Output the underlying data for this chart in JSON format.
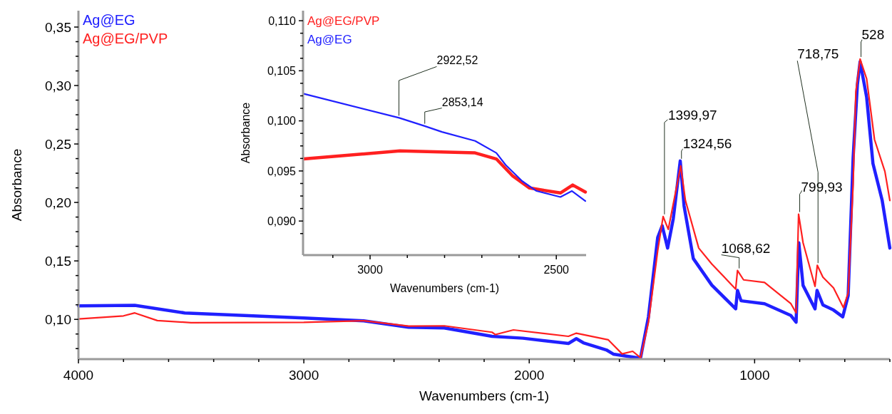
{
  "chart_data": [
    {
      "type": "line",
      "xlabel": "Wavenumbers (cm-1)",
      "ylabel": "Absorbance",
      "xlim": [
        4000,
        400
      ],
      "ylim": [
        0.066,
        0.364
      ],
      "xticks": [
        {
          "value": 4000,
          "label": "4000"
        },
        {
          "value": 3800,
          "label": null
        },
        {
          "value": 3600,
          "label": null
        },
        {
          "value": 3400,
          "label": null
        },
        {
          "value": 3200,
          "label": null
        },
        {
          "value": 3000,
          "label": "3000"
        },
        {
          "value": 2800,
          "label": null
        },
        {
          "value": 2600,
          "label": null
        },
        {
          "value": 2400,
          "label": null
        },
        {
          "value": 2200,
          "label": null
        },
        {
          "value": 2000,
          "label": "2000"
        },
        {
          "value": 1800,
          "label": null
        },
        {
          "value": 1600,
          "label": null
        },
        {
          "value": 1400,
          "label": null
        },
        {
          "value": 1200,
          "label": null
        },
        {
          "value": 1000,
          "label": "1000"
        },
        {
          "value": 800,
          "label": null
        },
        {
          "value": 600,
          "label": null
        },
        {
          "value": 400,
          "label": null
        }
      ],
      "yticks": [
        {
          "value": 0.075,
          "label": null
        },
        {
          "value": 0.0875,
          "label": null
        },
        {
          "value": 0.1,
          "label": "0,10"
        },
        {
          "value": 0.1125,
          "label": null
        },
        {
          "value": 0.125,
          "label": null
        },
        {
          "value": 0.1375,
          "label": null
        },
        {
          "value": 0.15,
          "label": "0,15"
        },
        {
          "value": 0.1625,
          "label": null
        },
        {
          "value": 0.175,
          "label": null
        },
        {
          "value": 0.1875,
          "label": null
        },
        {
          "value": 0.2,
          "label": "0,20"
        },
        {
          "value": 0.2125,
          "label": null
        },
        {
          "value": 0.225,
          "label": null
        },
        {
          "value": 0.2375,
          "label": null
        },
        {
          "value": 0.25,
          "label": "0,25"
        },
        {
          "value": 0.2625,
          "label": null
        },
        {
          "value": 0.275,
          "label": null
        },
        {
          "value": 0.2875,
          "label": null
        },
        {
          "value": 0.3,
          "label": "0,30"
        },
        {
          "value": 0.3125,
          "label": null
        },
        {
          "value": 0.325,
          "label": null
        },
        {
          "value": 0.3375,
          "label": null
        },
        {
          "value": 0.35,
          "label": "0,35"
        }
      ],
      "grid": false,
      "legend": "top left",
      "line_style": "solid",
      "series": [
        {
          "name": "Ag@EG",
          "color": "#2020ff",
          "x": [
            4000,
            3750,
            3528,
            3000,
            2734,
            2535,
            2377,
            2165,
            2028,
            1826,
            1791,
            1760,
            1658,
            1627,
            1522,
            1506,
            1471,
            1430,
            1410,
            1386,
            1361,
            1330,
            1313,
            1272,
            1190,
            1084,
            1076,
            1060,
            956,
            839,
            816,
            804,
            785,
            732,
            723,
            697,
            650,
            609,
            585,
            563,
            544,
            532,
            503,
            475,
            434,
            400
          ],
          "values": [
            0.1116,
            0.112,
            0.1055,
            0.1012,
            0.0988,
            0.0933,
            0.0927,
            0.0855,
            0.0839,
            0.0794,
            0.0835,
            0.08,
            0.0739,
            0.0703,
            0.0672,
            0.0671,
            0.1022,
            0.17,
            0.18,
            0.161,
            0.186,
            0.2355,
            0.197,
            0.152,
            0.1293,
            0.109,
            0.1248,
            0.1159,
            0.1134,
            0.1033,
            0.0976,
            0.1655,
            0.129,
            0.109,
            0.1248,
            0.1123,
            0.108,
            0.1022,
            0.1203,
            0.238,
            0.301,
            0.3204,
            0.29,
            0.2333,
            0.2017,
            0.161
          ]
        },
        {
          "name": "Ag@EG/PVP",
          "color": "#ff2020",
          "x": [
            4000,
            3800,
            3750,
            3650,
            3500,
            3000,
            2734,
            2535,
            2377,
            2165,
            2150,
            2070,
            1826,
            1791,
            1649,
            1588,
            1541,
            1506,
            1471,
            1430,
            1406,
            1383,
            1328,
            1307,
            1248,
            1190,
            1084,
            1076,
            1049,
            956,
            839,
            816,
            805,
            785,
            732,
            722,
            697,
            650,
            606,
            585,
            563,
            551,
            532,
            503,
            468,
            422,
            400
          ],
          "values": [
            0.1004,
            0.103,
            0.1055,
            0.099,
            0.0972,
            0.0975,
            0.0988,
            0.0943,
            0.0945,
            0.089,
            0.087,
            0.091,
            0.0855,
            0.0882,
            0.0825,
            0.0705,
            0.0727,
            0.0671,
            0.0976,
            0.1587,
            0.188,
            0.177,
            0.2312,
            0.2017,
            0.161,
            0.1474,
            0.1259,
            0.1418,
            0.1338,
            0.1316,
            0.1134,
            0.1056,
            0.19,
            0.1655,
            0.1282,
            0.1463,
            0.1361,
            0.127,
            0.1101,
            0.1226,
            0.2154,
            0.2944,
            0.3226,
            0.3057,
            0.2537,
            0.2265,
            0.2017
          ]
        }
      ],
      "annotations": [
        {
          "text": "1399,97",
          "x": 1400,
          "y": 0.188
        },
        {
          "text": "1324,56",
          "x": 1324.56,
          "y": 0.2355
        },
        {
          "text": "1068,62",
          "x": 1068.62,
          "y": 0.1418
        },
        {
          "text": "799,93",
          "x": 800,
          "y": 0.19
        },
        {
          "text": "718,75",
          "x": 718.75,
          "y": 0.1463
        },
        {
          "text": "528",
          "x": 528,
          "y": 0.3226
        }
      ]
    },
    {
      "type": "line",
      "xlabel": "Wavenumbers (cm-1)",
      "ylabel": "Absorbance",
      "xlim": [
        3180,
        2420
      ],
      "ylim": [
        0.0866,
        0.111
      ],
      "xticks": [
        {
          "value": 3100,
          "label": null
        },
        {
          "value": 3000,
          "label": "3000"
        },
        {
          "value": 2900,
          "label": null
        },
        {
          "value": 2800,
          "label": null
        },
        {
          "value": 2700,
          "label": null
        },
        {
          "value": 2600,
          "label": null
        },
        {
          "value": 2500,
          "label": "2500"
        }
      ],
      "yticks": [
        {
          "value": 0.08875,
          "label": null
        },
        {
          "value": 0.09,
          "label": "0,090"
        },
        {
          "value": 0.09125,
          "label": null
        },
        {
          "value": 0.0925,
          "label": null
        },
        {
          "value": 0.09375,
          "label": null
        },
        {
          "value": 0.095,
          "label": "0,095"
        },
        {
          "value": 0.09625,
          "label": null
        },
        {
          "value": 0.0975,
          "label": null
        },
        {
          "value": 0.09875,
          "label": null
        },
        {
          "value": 0.1,
          "label": "0,100"
        },
        {
          "value": 0.10125,
          "label": null
        },
        {
          "value": 0.1025,
          "label": null
        },
        {
          "value": 0.10375,
          "label": null
        },
        {
          "value": 0.105,
          "label": "0,105"
        },
        {
          "value": 0.10625,
          "label": null
        },
        {
          "value": 0.1075,
          "label": null
        },
        {
          "value": 0.10875,
          "label": null
        },
        {
          "value": 0.11,
          "label": "0,110"
        }
      ],
      "grid": false,
      "legend": "top left",
      "line_style": "solid",
      "series": [
        {
          "name": "Ag@EG/PVP",
          "color": "#ff2020",
          "x": [
            3178,
            2920,
            2718,
            2661,
            2617,
            2572,
            2489,
            2456,
            2422
          ],
          "values": [
            0.0962,
            0.097,
            0.0968,
            0.0962,
            0.0945,
            0.0933,
            0.0928,
            0.0936,
            0.0929
          ]
        },
        {
          "name": "Ag@EG",
          "color": "#2020ff",
          "x": [
            3178,
            2922,
            2855,
            2807,
            2718,
            2661,
            2636,
            2592,
            2553,
            2489,
            2458,
            2422
          ],
          "values": [
            0.1027,
            0.1003,
            0.0995,
            0.0989,
            0.098,
            0.0968,
            0.0956,
            0.094,
            0.093,
            0.0924,
            0.093,
            0.092
          ]
        }
      ],
      "annotations": [
        {
          "text": "2922,52",
          "x": 2922.52,
          "y": 0.1003
        },
        {
          "text": "2853,14",
          "x": 2853.14,
          "y": 0.0995
        }
      ]
    }
  ]
}
